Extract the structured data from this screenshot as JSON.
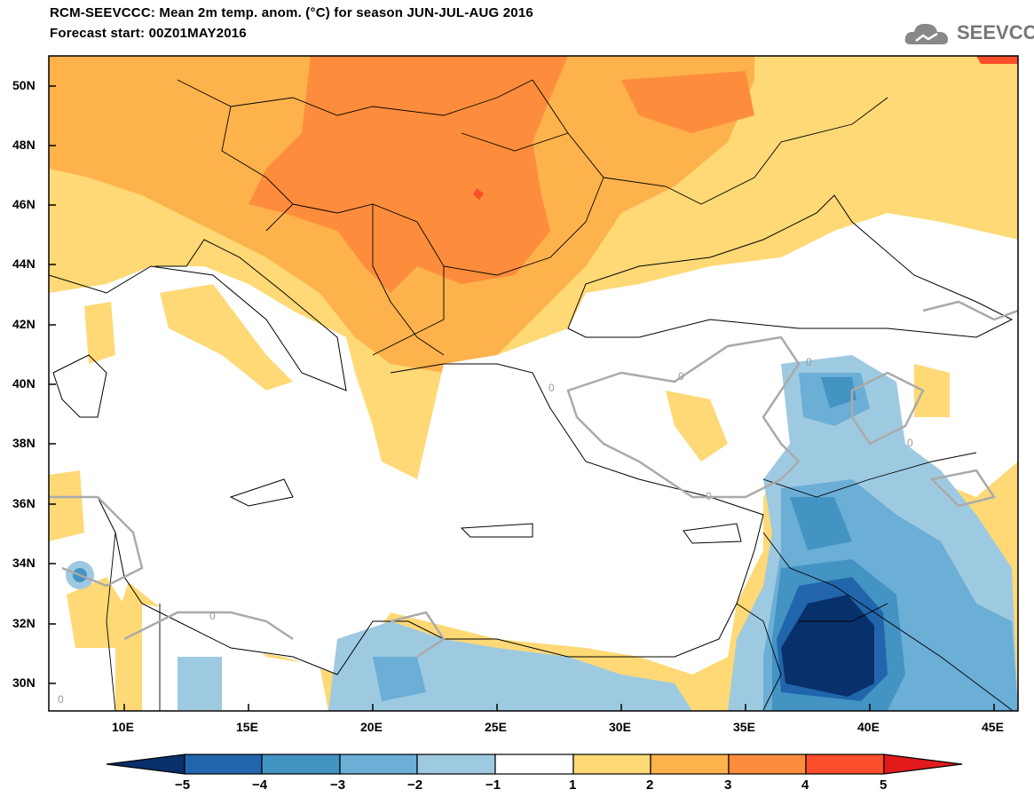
{
  "header": {
    "title_line1": "RCM-SEEVCCC: Mean 2m temp. anom. (°C) for season JUN-JUL-AUG 2016",
    "title_line2": "Forecast start: 00Z01MAY2016"
  },
  "logo": {
    "text": "SEEVCCC",
    "icon": "cloud-icon"
  },
  "map": {
    "lat_labels": [
      "50N",
      "48N",
      "46N",
      "44N",
      "42N",
      "40N",
      "38N",
      "36N",
      "34N",
      "32N",
      "30N"
    ],
    "lon_labels": [
      "10E",
      "15E",
      "20E",
      "25E",
      "30E",
      "35E",
      "40E",
      "45E"
    ],
    "contour_label": "0"
  },
  "colorbar": {
    "labels": [
      "−5",
      "−4",
      "−3",
      "−2",
      "−1",
      "1",
      "2",
      "3",
      "4",
      "5"
    ],
    "colors": [
      "#08306b",
      "#2166ac",
      "#4393c3",
      "#6baed6",
      "#9ecae1",
      "#ffffff",
      "#fed976",
      "#feb24c",
      "#fd8d3c",
      "#fc4e2a",
      "#e31a1c"
    ]
  }
}
